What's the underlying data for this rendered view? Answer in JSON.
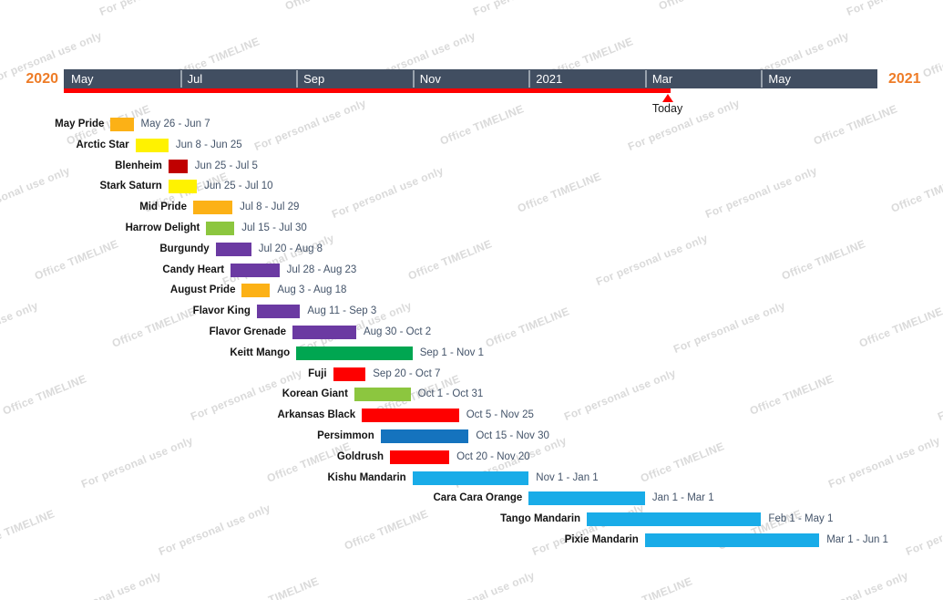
{
  "watermark": {
    "primary": "Office TIMELINE",
    "secondary": "For personal use only",
    "color": "#dadada"
  },
  "header": {
    "bar_color": "#414e61",
    "separator_color": "#99a2ad",
    "year_color": "#ee7c27",
    "left_year": "2020",
    "right_year": "2021"
  },
  "chart_data": {
    "type": "bar",
    "subtype": "gantt-timeline",
    "title": "",
    "axis": {
      "start": "2020-05-01",
      "end": "2021-07-01",
      "tick_labels": [
        "May",
        "Jul",
        "Sep",
        "Nov",
        "2021",
        "Mar",
        "May"
      ],
      "left_year": "2020",
      "right_year": "2021",
      "grid": "off",
      "legend": "none"
    },
    "today": {
      "date": "2021-03-13",
      "label": "Today",
      "line_color": "#fe0000"
    },
    "tasks": [
      {
        "name": "May Pride",
        "start": "2020-05-26",
        "end": "2020-06-07",
        "date_label": "May 26 - Jun 7",
        "color": "#fcb116"
      },
      {
        "name": "Arctic Star",
        "start": "2020-06-08",
        "end": "2020-06-25",
        "date_label": "Jun 8 - Jun 25",
        "color": "#fff200"
      },
      {
        "name": "Blenheim",
        "start": "2020-06-25",
        "end": "2020-07-05",
        "date_label": "Jun 25 - Jul 5",
        "color": "#c00000"
      },
      {
        "name": "Stark Saturn",
        "start": "2020-06-25",
        "end": "2020-07-10",
        "date_label": "Jun 25 - Jul 10",
        "color": "#fff200"
      },
      {
        "name": "Mid Pride",
        "start": "2020-07-08",
        "end": "2020-07-29",
        "date_label": "Jul 8 - Jul 29",
        "color": "#fcb116"
      },
      {
        "name": "Harrow Delight",
        "start": "2020-07-15",
        "end": "2020-07-30",
        "date_label": "Jul 15 - Jul 30",
        "color": "#8cc63f"
      },
      {
        "name": "Burgundy",
        "start": "2020-07-20",
        "end": "2020-08-08",
        "date_label": "Jul 20 - Aug 8",
        "color": "#6b3aa2"
      },
      {
        "name": "Candy Heart",
        "start": "2020-07-28",
        "end": "2020-08-23",
        "date_label": "Jul 28 - Aug 23",
        "color": "#6b3aa2"
      },
      {
        "name": "August Pride",
        "start": "2020-08-03",
        "end": "2020-08-18",
        "date_label": "Aug 3 - Aug 18",
        "color": "#fcb116"
      },
      {
        "name": "Flavor King",
        "start": "2020-08-11",
        "end": "2020-09-03",
        "date_label": "Aug 11 - Sep 3",
        "color": "#6b3aa2"
      },
      {
        "name": "Flavor Grenade",
        "start": "2020-08-30",
        "end": "2020-10-02",
        "date_label": "Aug 30 - Oct 2",
        "color": "#6b3aa2"
      },
      {
        "name": "Keitt Mango",
        "start": "2020-09-01",
        "end": "2020-11-01",
        "date_label": "Sep 1 - Nov 1",
        "color": "#00a651"
      },
      {
        "name": "Fuji",
        "start": "2020-09-20",
        "end": "2020-10-07",
        "date_label": "Sep 20 - Oct 7",
        "color": "#fe0000"
      },
      {
        "name": "Korean Giant",
        "start": "2020-10-01",
        "end": "2020-10-31",
        "date_label": "Oct 1 - Oct 31",
        "color": "#8cc63f"
      },
      {
        "name": "Arkansas Black",
        "start": "2020-10-05",
        "end": "2020-11-25",
        "date_label": "Oct 5 - Nov 25",
        "color": "#fe0000"
      },
      {
        "name": "Persimmon",
        "start": "2020-10-15",
        "end": "2020-11-30",
        "date_label": "Oct 15 - Nov 30",
        "color": "#1573be"
      },
      {
        "name": "Goldrush",
        "start": "2020-10-20",
        "end": "2020-11-20",
        "date_label": "Oct 20 - Nov 20",
        "color": "#fe0000"
      },
      {
        "name": "Kishu Mandarin",
        "start": "2020-11-01",
        "end": "2021-01-01",
        "date_label": "Nov 1 - Jan 1",
        "color": "#19ace8"
      },
      {
        "name": "Cara Cara Orange",
        "start": "2021-01-01",
        "end": "2021-03-01",
        "date_label": "Jan 1 - Mar 1",
        "color": "#19ace8"
      },
      {
        "name": "Tango Mandarin",
        "start": "2021-02-01",
        "end": "2021-05-01",
        "date_label": "Feb 1 - May 1",
        "color": "#19ace8"
      },
      {
        "name": "Pixie Mandarin",
        "start": "2021-03-01",
        "end": "2021-06-01",
        "date_label": "Mar 1 - Jun 1",
        "color": "#19ace8"
      }
    ]
  }
}
